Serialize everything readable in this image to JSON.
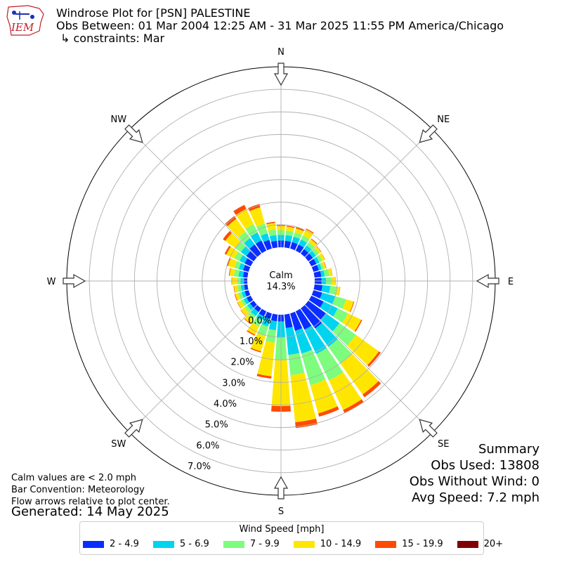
{
  "header": {
    "title": "Windrose Plot for [PSN] PALESTINE",
    "obs_between": "Obs Between: 01 Mar 2004 12:25 AM - 31 Mar 2025 11:55 PM America/Chicago",
    "constraints": "↳ constraints: Mar",
    "logo_text": "IEM"
  },
  "notes": {
    "calm_note": "Calm values are < 2.0 mph",
    "bar_convention": "Bar Convention: Meteorology",
    "flow_arrows": "Flow arrows relative to plot center.",
    "generated": "Generated: 14 May 2025"
  },
  "summary": {
    "title": "Summary",
    "obs_used": "Obs Used: 13808",
    "obs_without_wind": "Obs Without Wind: 0",
    "avg_speed": "Avg Speed: 7.2 mph"
  },
  "chart_data": {
    "type": "windrose",
    "calm_label": "Calm",
    "calm_value": "14.3%",
    "radial_ticks": [
      "0.0%",
      "1.0%",
      "2.0%",
      "3.0%",
      "4.0%",
      "5.0%",
      "6.0%",
      "7.0%"
    ],
    "r_max": 8.0,
    "compass_labels": [
      "N",
      "NE",
      "E",
      "SE",
      "S",
      "SW",
      "W",
      "NW"
    ],
    "legend_title": "Wind Speed [mph]",
    "speed_bins": [
      {
        "label": "2 - 4.9",
        "color": "#0a2dff"
      },
      {
        "label": "5 - 6.9",
        "color": "#00d4ee"
      },
      {
        "label": "7 - 9.9",
        "color": "#7dfc7d"
      },
      {
        "label": "10 - 14.9",
        "color": "#ffe600"
      },
      {
        "label": "15 - 19.9",
        "color": "#ff4a00"
      },
      {
        "label": "20+",
        "color": "#800000"
      }
    ],
    "direction_bins": [
      {
        "dir": 0,
        "cum": [
          0.3,
          0.55,
          0.75,
          0.95,
          1.0,
          1.0
        ]
      },
      {
        "dir": 10,
        "cum": [
          0.3,
          0.55,
          0.75,
          0.93,
          0.97,
          0.97
        ]
      },
      {
        "dir": 20,
        "cum": [
          0.3,
          0.55,
          0.75,
          0.93,
          0.99,
          0.99
        ]
      },
      {
        "dir": 30,
        "cum": [
          0.3,
          0.55,
          0.75,
          1.05,
          1.09,
          1.09
        ]
      },
      {
        "dir": 40,
        "cum": [
          0.25,
          0.45,
          0.62,
          0.78,
          0.82,
          0.82
        ]
      },
      {
        "dir": 50,
        "cum": [
          0.25,
          0.42,
          0.58,
          0.7,
          0.72,
          0.72
        ]
      },
      {
        "dir": 60,
        "cum": [
          0.25,
          0.4,
          0.55,
          0.68,
          0.69,
          0.69
        ]
      },
      {
        "dir": 70,
        "cum": [
          0.25,
          0.38,
          0.48,
          0.58,
          0.6,
          0.6
        ]
      },
      {
        "dir": 80,
        "cum": [
          0.3,
          0.45,
          0.65,
          0.79,
          0.8,
          0.8
        ]
      },
      {
        "dir": 90,
        "cum": [
          0.3,
          0.5,
          0.75,
          0.92,
          0.93,
          0.93
        ]
      },
      {
        "dir": 100,
        "cum": [
          0.35,
          0.7,
          1.0,
          1.14,
          1.15,
          1.15
        ]
      },
      {
        "dir": 110,
        "cum": [
          0.4,
          1.0,
          1.5,
          1.85,
          1.88,
          1.88
        ]
      },
      {
        "dir": 120,
        "cum": [
          0.6,
          1.3,
          1.8,
          2.45,
          2.5,
          2.5
        ]
      },
      {
        "dir": 130,
        "cum": [
          0.95,
          1.7,
          2.6,
          3.85,
          3.95,
          3.95
        ]
      },
      {
        "dir": 140,
        "cum": [
          1.1,
          2.1,
          3.0,
          4.7,
          4.85,
          4.85
        ]
      },
      {
        "dir": 150,
        "cum": [
          0.9,
          2.1,
          3.4,
          4.85,
          5.0,
          5.0
        ]
      },
      {
        "dir": 160,
        "cum": [
          0.8,
          1.85,
          3.3,
          4.6,
          4.75,
          4.75
        ]
      },
      {
        "dir": 170,
        "cum": [
          0.6,
          1.8,
          2.7,
          4.8,
          5.05,
          5.05
        ]
      },
      {
        "dir": 180,
        "cum": [
          0.3,
          1.0,
          2.0,
          4.05,
          4.3,
          4.3
        ]
      },
      {
        "dir": 190,
        "cum": [
          0.3,
          0.7,
          1.25,
          2.75,
          2.85,
          2.85
        ]
      },
      {
        "dir": 200,
        "cum": [
          0.25,
          0.6,
          1.05,
          1.75,
          1.8,
          1.8
        ]
      },
      {
        "dir": 210,
        "cum": [
          0.25,
          0.45,
          0.75,
          1.15,
          1.2,
          1.2
        ]
      },
      {
        "dir": 220,
        "cum": [
          0.2,
          0.42,
          0.6,
          0.82,
          0.85,
          0.85
        ]
      },
      {
        "dir": 230,
        "cum": [
          0.2,
          0.35,
          0.5,
          0.7,
          0.72,
          0.72
        ]
      },
      {
        "dir": 240,
        "cum": [
          0.2,
          0.35,
          0.48,
          0.65,
          0.67,
          0.67
        ]
      },
      {
        "dir": 250,
        "cum": [
          0.18,
          0.32,
          0.48,
          0.62,
          0.65,
          0.65
        ]
      },
      {
        "dir": 260,
        "cum": [
          0.15,
          0.3,
          0.45,
          0.6,
          0.62,
          0.62
        ]
      },
      {
        "dir": 270,
        "cum": [
          0.15,
          0.3,
          0.45,
          0.68,
          0.7,
          0.7
        ]
      },
      {
        "dir": 280,
        "cum": [
          0.2,
          0.4,
          0.6,
          0.8,
          0.83,
          0.83
        ]
      },
      {
        "dir": 290,
        "cum": [
          0.25,
          0.45,
          0.65,
          0.95,
          1.0,
          1.0
        ]
      },
      {
        "dir": 300,
        "cum": [
          0.3,
          0.55,
          0.8,
          1.2,
          1.28,
          1.28
        ]
      },
      {
        "dir": 310,
        "cum": [
          0.4,
          0.7,
          1.0,
          1.55,
          1.68,
          1.68
        ]
      },
      {
        "dir": 320,
        "cum": [
          0.5,
          0.85,
          1.2,
          1.9,
          2.05,
          2.05
        ]
      },
      {
        "dir": 330,
        "cum": [
          0.5,
          0.9,
          1.3,
          2.05,
          2.25,
          2.25
        ]
      },
      {
        "dir": 340,
        "cum": [
          0.4,
          0.7,
          1.15,
          1.9,
          2.05,
          2.05
        ]
      },
      {
        "dir": 350,
        "cum": [
          0.3,
          0.55,
          0.8,
          1.1,
          1.15,
          1.15
        ]
      }
    ]
  }
}
